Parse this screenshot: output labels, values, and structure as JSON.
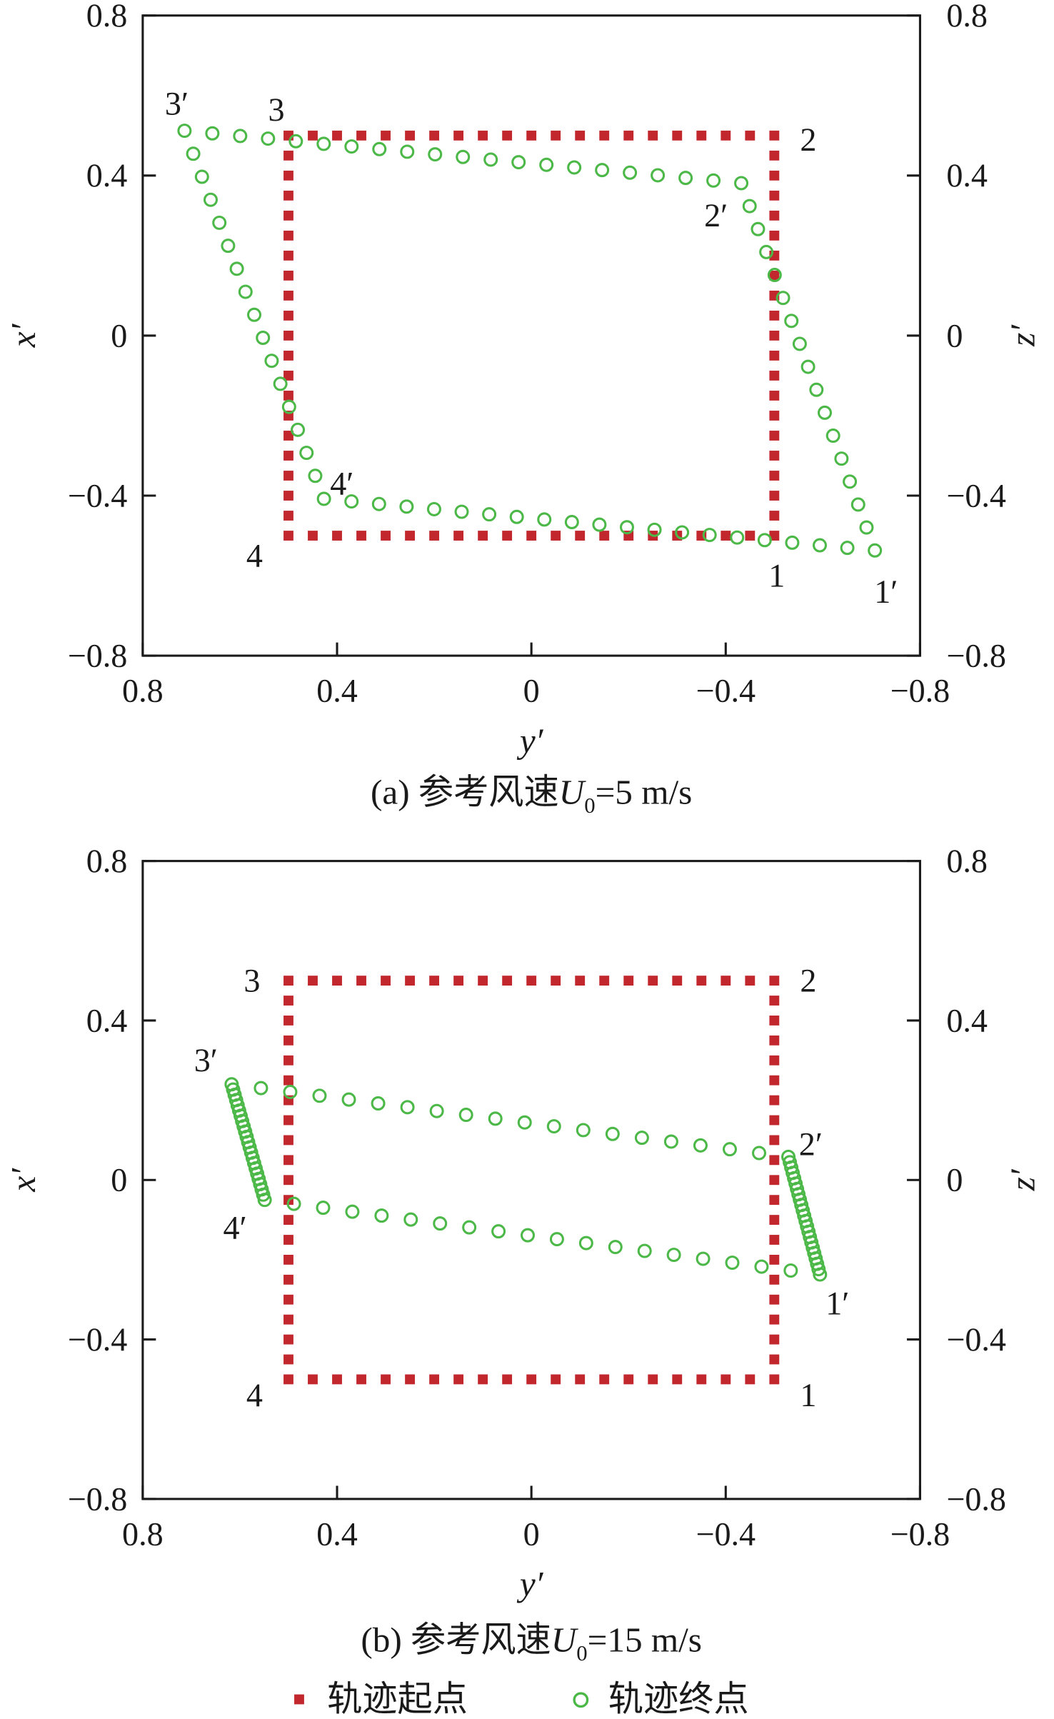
{
  "colors": {
    "start": "#c1272d",
    "end": "#4cb848",
    "axis": "#1a1a1a"
  },
  "legend": {
    "start_label": "轨迹起点",
    "end_label": "轨迹终点"
  },
  "chart_data": [
    {
      "type": "scatter",
      "caption": {
        "prefix": "(a) 参考风速",
        "var": "U",
        "sub": "0",
        "suffix": "=5 m/s"
      },
      "xlabel": "y′",
      "ylabel": "x′",
      "ylabel_right": "z′",
      "xlim": [
        0.8,
        -0.8
      ],
      "ylim": [
        -0.8,
        0.8
      ],
      "xticks": [
        "0.8",
        "0.4",
        "0",
        "−0.4",
        "−0.8"
      ],
      "yticks": [
        "−0.8",
        "−0.4",
        "0",
        "0.4",
        "0.8"
      ],
      "yticks_right": [
        "−0.8",
        "−0.4",
        "0",
        "0.4",
        "0.8"
      ],
      "grid": false,
      "start_series": {
        "name": "轨迹起点",
        "corners": {
          "1": [
            -0.5,
            -0.5
          ],
          "2": [
            -0.5,
            0.5
          ],
          "3": [
            0.5,
            0.5
          ],
          "4": [
            0.5,
            -0.5
          ]
        },
        "points_per_side": 20
      },
      "end_series": {
        "name": "轨迹终点",
        "corners": {
          "1′": [
            -0.707,
            -0.537
          ],
          "2′": [
            -0.432,
            0.381
          ],
          "3′": [
            0.714,
            0.512
          ],
          "4′": [
            0.427,
            -0.408
          ]
        },
        "sides": [
          [
            "3′",
            "2′",
            20
          ],
          [
            "2′",
            "1′",
            16
          ],
          [
            "1′",
            "4′",
            20
          ],
          [
            "4′",
            "3′",
            16
          ]
        ]
      },
      "labels": [
        {
          "text": "3′",
          "at": [
            0.73,
            0.58
          ]
        },
        {
          "text": "3",
          "at": [
            0.525,
            0.565
          ]
        },
        {
          "text": "2",
          "at": [
            -0.57,
            0.49
          ]
        },
        {
          "text": "2′",
          "at": [
            -0.38,
            0.3
          ]
        },
        {
          "text": "4′",
          "at": [
            0.39,
            -0.37
          ]
        },
        {
          "text": "4",
          "at": [
            0.57,
            -0.55
          ]
        },
        {
          "text": "1",
          "at": [
            -0.505,
            -0.6
          ]
        },
        {
          "text": "1′",
          "at": [
            -0.73,
            -0.64
          ]
        }
      ]
    },
    {
      "type": "scatter",
      "caption": {
        "prefix": "(b) 参考风速",
        "var": "U",
        "sub": "0",
        "suffix": "=15 m/s"
      },
      "xlabel": "y′",
      "ylabel": "x′",
      "ylabel_right": "z′",
      "xlim": [
        0.8,
        -0.8
      ],
      "ylim": [
        -0.8,
        0.8
      ],
      "xticks": [
        "0.8",
        "0.4",
        "0",
        "−0.4",
        "−0.8"
      ],
      "yticks": [
        "−0.8",
        "−0.4",
        "0",
        "0.4",
        "0.8"
      ],
      "yticks_right": [
        "−0.8",
        "−0.4",
        "0",
        "0.4",
        "0.8"
      ],
      "grid": false,
      "start_series": {
        "name": "轨迹起点",
        "corners": {
          "1": [
            -0.5,
            -0.5
          ],
          "2": [
            -0.5,
            0.5
          ],
          "3": [
            0.5,
            0.5
          ],
          "4": [
            0.5,
            -0.5
          ]
        },
        "points_per_side": 20
      },
      "end_series": {
        "name": "轨迹终点",
        "corners": {
          "1′": [
            -0.594,
            -0.237
          ],
          "2′": [
            -0.529,
            0.058
          ],
          "3′": [
            0.617,
            0.24
          ],
          "4′": [
            0.549,
            -0.05
          ]
        },
        "sides": [
          [
            "3′",
            "2′",
            19
          ],
          [
            "2′",
            "1′",
            22
          ],
          [
            "1′",
            "4′",
            19
          ],
          [
            "4′",
            "3′",
            22
          ]
        ]
      },
      "labels": [
        {
          "text": "3",
          "at": [
            0.575,
            0.5
          ]
        },
        {
          "text": "2",
          "at": [
            -0.57,
            0.5
          ]
        },
        {
          "text": "3′",
          "at": [
            0.67,
            0.3
          ]
        },
        {
          "text": "2′",
          "at": [
            -0.575,
            0.09
          ]
        },
        {
          "text": "4′",
          "at": [
            0.61,
            -0.12
          ]
        },
        {
          "text": "1′",
          "at": [
            -0.63,
            -0.31
          ]
        },
        {
          "text": "4",
          "at": [
            0.57,
            -0.54
          ]
        },
        {
          "text": "1",
          "at": [
            -0.57,
            -0.54
          ]
        }
      ]
    }
  ]
}
